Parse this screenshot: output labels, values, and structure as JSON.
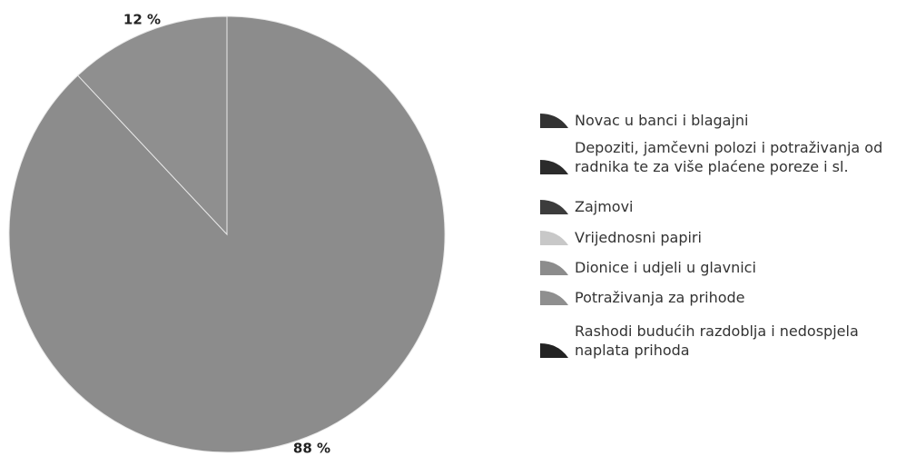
{
  "chart_data": {
    "type": "pie",
    "categories": [
      "Novac u banci i blagajni",
      "Depoziti, jamčevni polozi i potraživanja od radnika te za više plaćene poreze i sl.",
      "Zajmovi",
      "Vrijednosni papiri",
      "Dionice i udjeli u glavnici",
      "Potraživanja za prihode",
      "Rashodi budućih razdoblja i nedospjela naplata prihoda"
    ],
    "values": [
      0,
      0,
      0,
      0,
      88,
      12,
      0
    ],
    "value_labels": [
      null,
      null,
      null,
      null,
      "88 %",
      "12 %",
      null
    ],
    "colors": [
      "#333333",
      "#2b2b2b",
      "#3c3c3c",
      "#c8c8c8",
      "#8c8c8c",
      "#8f8f8f",
      "#232323"
    ],
    "legend": "right"
  }
}
